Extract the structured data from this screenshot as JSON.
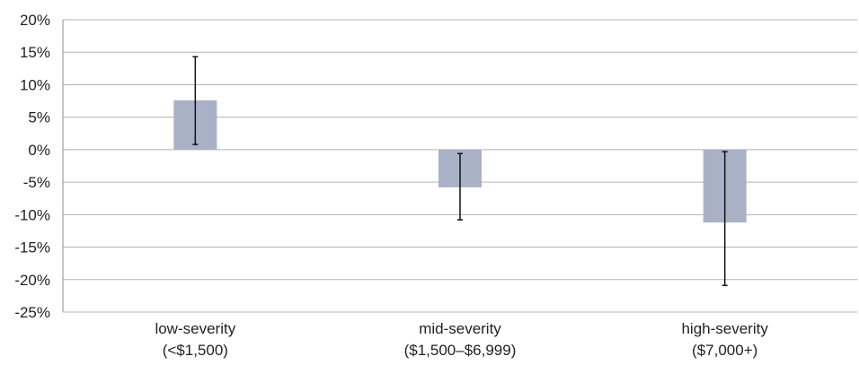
{
  "chart_data": {
    "type": "bar",
    "categories": [
      [
        "low-severity",
        "(<$1,500)"
      ],
      [
        "mid-severity",
        "($1,500–$6,999)"
      ],
      [
        "high-severity",
        "($7,000+)"
      ]
    ],
    "values": [
      7.6,
      -5.8,
      -11.2
    ],
    "error_bars": [
      {
        "low": 0.8,
        "high": 14.3
      },
      {
        "low": -10.8,
        "high": -0.6
      },
      {
        "low": -20.9,
        "high": -0.3
      }
    ],
    "ylim": [
      -25,
      20
    ],
    "yticks": [
      20,
      15,
      10,
      5,
      0,
      -5,
      -10,
      -15,
      -20,
      -25
    ],
    "ytick_labels": [
      "20%",
      "15%",
      "10%",
      "5%",
      "0%",
      "-5%",
      "-10%",
      "-15%",
      "-20%",
      "-25%"
    ],
    "grid": true,
    "colors": {
      "bar": "#a9b1c7",
      "grid": "#b3b3b3",
      "axis": "#8c8c8c",
      "error_bar": "#111111"
    }
  }
}
